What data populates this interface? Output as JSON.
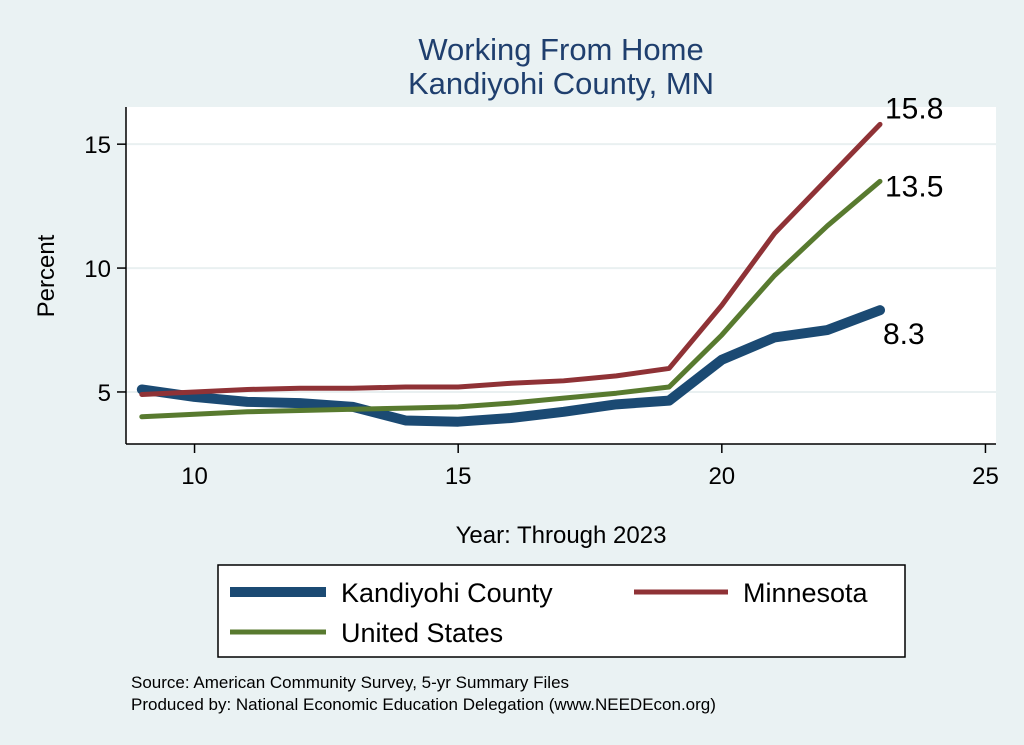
{
  "chart_data": {
    "type": "line",
    "title": "Working From Home",
    "subtitle": "Kandiyohi County, MN",
    "xlabel": "Year: Through 2023",
    "ylabel": "Percent",
    "xlim": [
      8.7,
      25.2
    ],
    "ylim": [
      2.9,
      16.5
    ],
    "x_ticks": [
      10,
      15,
      20,
      25
    ],
    "y_ticks": [
      5,
      10,
      15
    ],
    "grid": true,
    "legend_position": "bottom",
    "x": [
      9,
      10,
      11,
      12,
      13,
      14,
      15,
      16,
      17,
      18,
      19,
      20,
      21,
      22,
      23
    ],
    "series": [
      {
        "name": "Kandiyohi County",
        "color": "#1b4a73",
        "values": [
          5.1,
          4.8,
          4.6,
          4.55,
          4.4,
          3.85,
          3.8,
          3.95,
          4.2,
          4.5,
          4.65,
          6.3,
          7.2,
          7.5,
          8.3
        ],
        "end_label": "8.3"
      },
      {
        "name": "Minnesota",
        "color": "#8f3236",
        "values": [
          4.9,
          5.0,
          5.1,
          5.15,
          5.15,
          5.2,
          5.2,
          5.35,
          5.45,
          5.65,
          5.95,
          8.5,
          11.4,
          13.6,
          15.8
        ],
        "end_label": "15.8"
      },
      {
        "name": "United States",
        "color": "#587a2f",
        "values": [
          4.0,
          4.1,
          4.2,
          4.25,
          4.3,
          4.35,
          4.4,
          4.55,
          4.75,
          4.95,
          5.2,
          7.3,
          9.7,
          11.7,
          13.5
        ],
        "end_label": "13.5"
      }
    ],
    "notes": [
      "Source: American Community Survey, 5-yr Summary Files",
      "Produced by: National Economic Education Delegation (www.NEEDEcon.org)"
    ]
  }
}
